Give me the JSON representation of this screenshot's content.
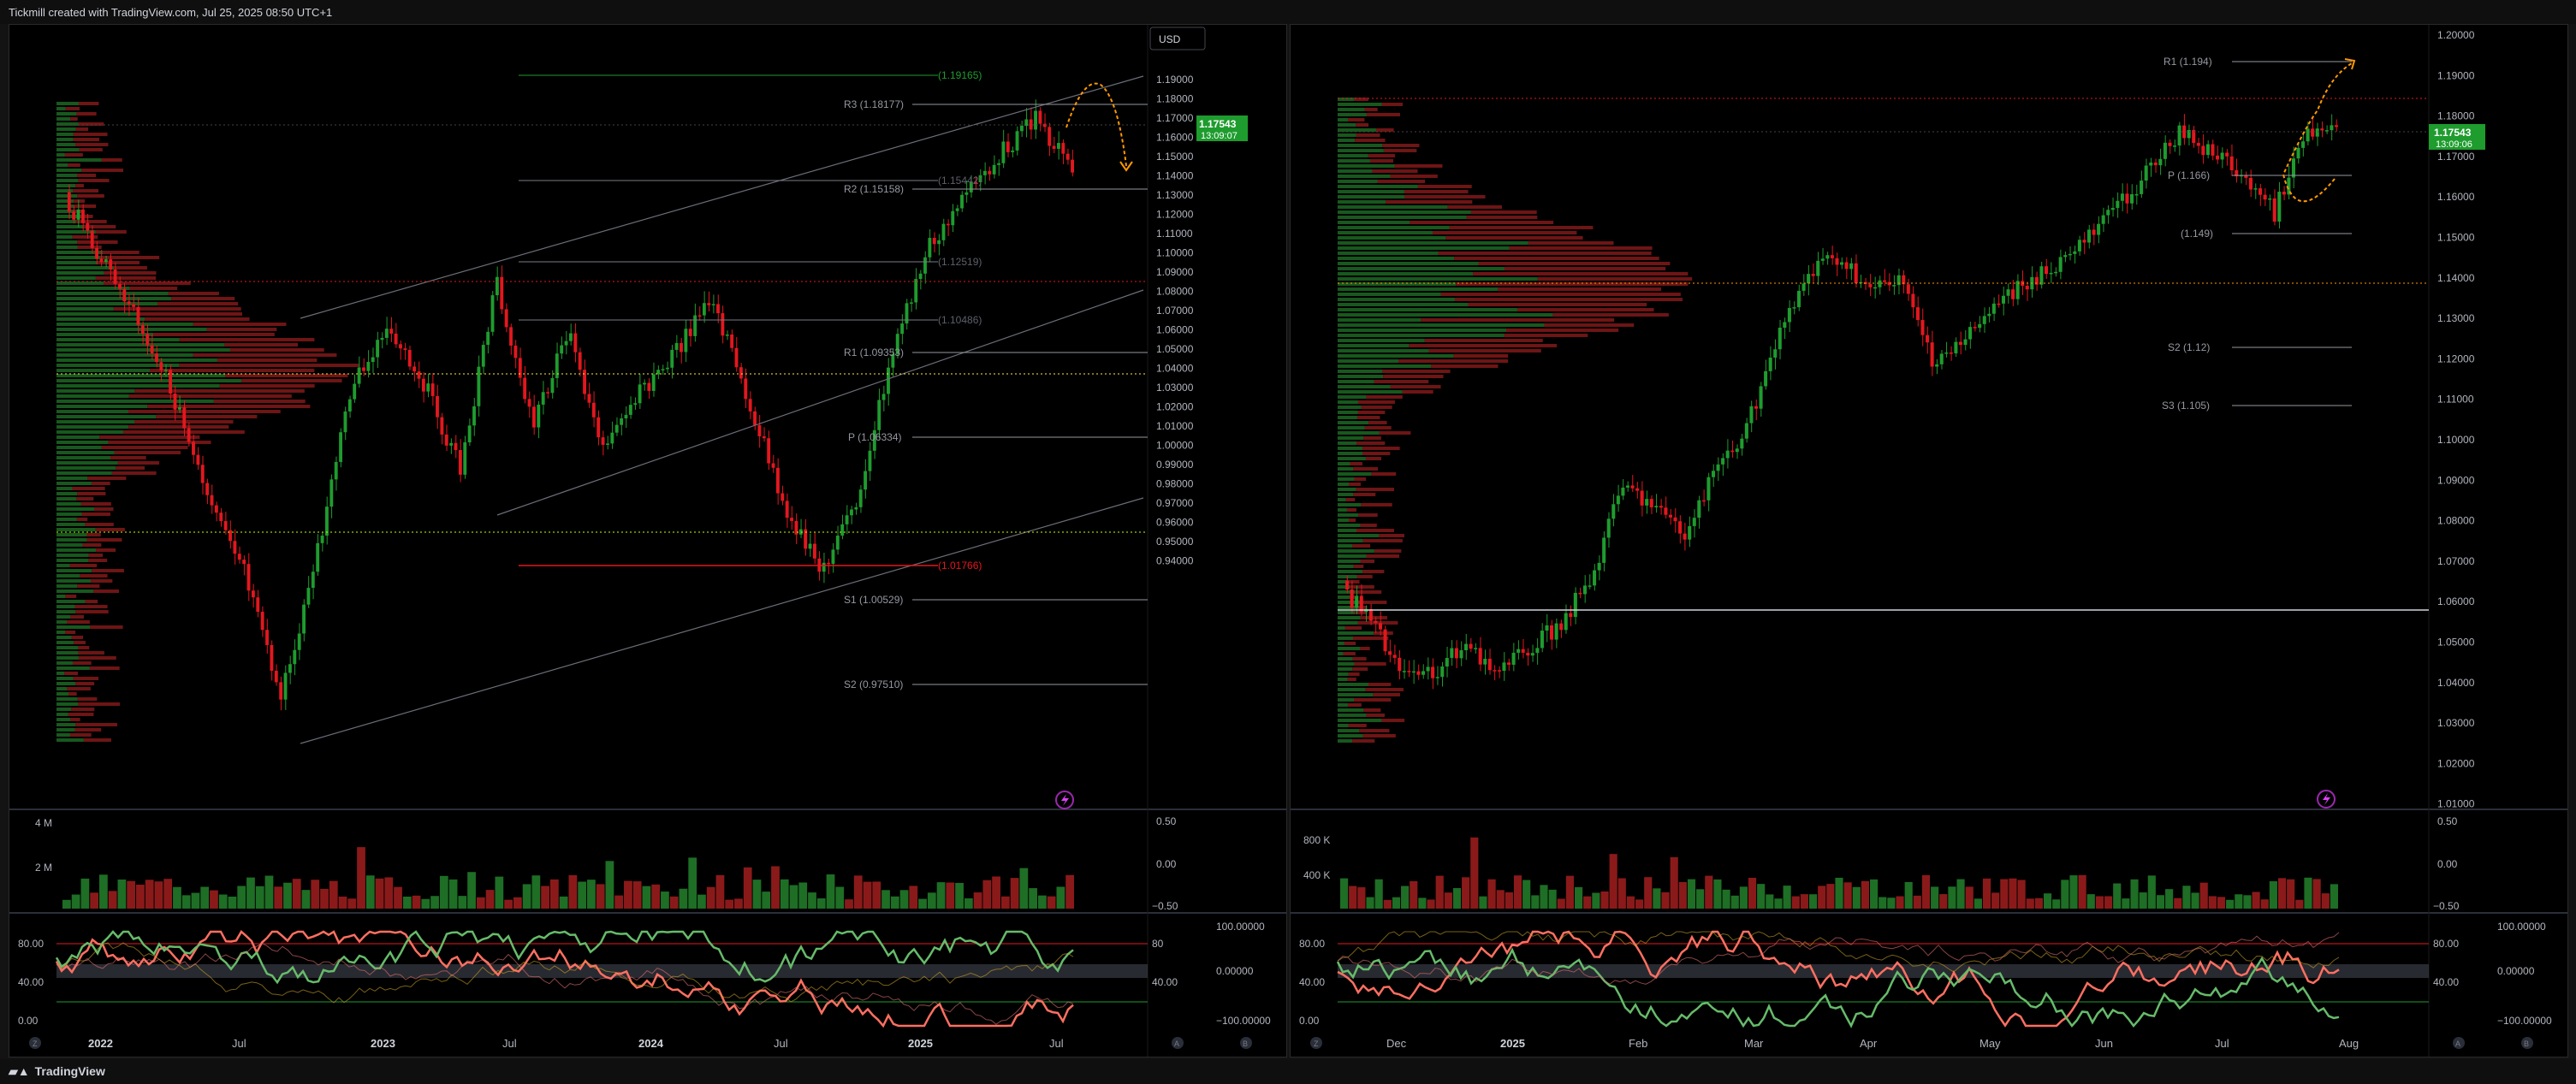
{
  "header": {
    "credit": "Tickmill created with TradingView.com, Jul 25, 2025 08:50 UTC+1"
  },
  "footer": {
    "brand": "TradingView"
  },
  "colors": {
    "up": "#1e9c2e",
    "down": "#e3171e",
    "accent_green": "#1e9c2e",
    "orange": "#ff9800",
    "pivot_line": "#9598a1"
  },
  "left_chart": {
    "currency_button": "USD",
    "last_price": "1.17543",
    "countdown": "13:09:07",
    "price_ticks": [
      "1.19000",
      "1.18000",
      "1.17000",
      "1.16000",
      "1.15000",
      "1.14000",
      "1.13000",
      "1.12000",
      "1.11000",
      "1.10000",
      "1.09000",
      "1.08000",
      "1.07000",
      "1.06000",
      "1.05000",
      "1.04000",
      "1.03000",
      "1.02000",
      "1.01000",
      "1.00000",
      "0.99000",
      "0.98000",
      "0.97000",
      "0.96000",
      "0.95000",
      "0.94000"
    ],
    "pivot_labels": [
      "R3 (1.18177)",
      "R2 (1.15158)",
      "R1 (1.09353)",
      "P (1.06334)",
      "S1 (1.00529)",
      "S2 (0.97510)"
    ],
    "fib_labels": [
      "(1.19165)",
      "(1.15442)",
      "(1.12519)",
      "(1.10486)",
      "(1.01766)"
    ],
    "volume_ticks": [
      "4 M",
      "2 M"
    ],
    "volume_right_ticks": [
      "0.50",
      "0.00",
      "−0.50"
    ],
    "osc_left_ticks": [
      "80.00",
      "40.00",
      "0.00"
    ],
    "osc_right_ticks": [
      "100.00000",
      "80",
      "0.00000",
      "40.00",
      "−100.00000"
    ],
    "time_labels": [
      "2022",
      "Jul",
      "2023",
      "Jul",
      "2024",
      "Jul",
      "2025",
      "Jul"
    ]
  },
  "right_chart": {
    "last_price": "1.17543",
    "countdown": "13:09:06",
    "price_ticks": [
      "1.20000",
      "1.19000",
      "1.18000",
      "1.17000",
      "1.16000",
      "1.15000",
      "1.14000",
      "1.13000",
      "1.12000",
      "1.11000",
      "1.10000",
      "1.09000",
      "1.08000",
      "1.07000",
      "1.06000",
      "1.05000",
      "1.04000",
      "1.03000",
      "1.02000",
      "1.01000"
    ],
    "pivot_labels": [
      "R1 (1.194)",
      "P (1.166)",
      "(1.149)",
      "S2 (1.12)",
      "S3 (1.105)"
    ],
    "volume_ticks": [
      "800 K",
      "400 K"
    ],
    "volume_right_ticks": [
      "0.50",
      "0.00",
      "−0.50"
    ],
    "osc_left_ticks": [
      "80.00",
      "40.00",
      "0.00"
    ],
    "osc_right_ticks": [
      "100.00000",
      "80.00",
      "0.00000",
      "40.00",
      "−100.00000"
    ],
    "time_labels": [
      "Dec",
      "2025",
      "Feb",
      "Mar",
      "Apr",
      "May",
      "Jun",
      "Jul",
      "Aug"
    ]
  },
  "icons": {
    "timezone": "Z",
    "auto": "A",
    "bolt": "bolt-icon",
    "log": "B"
  }
}
